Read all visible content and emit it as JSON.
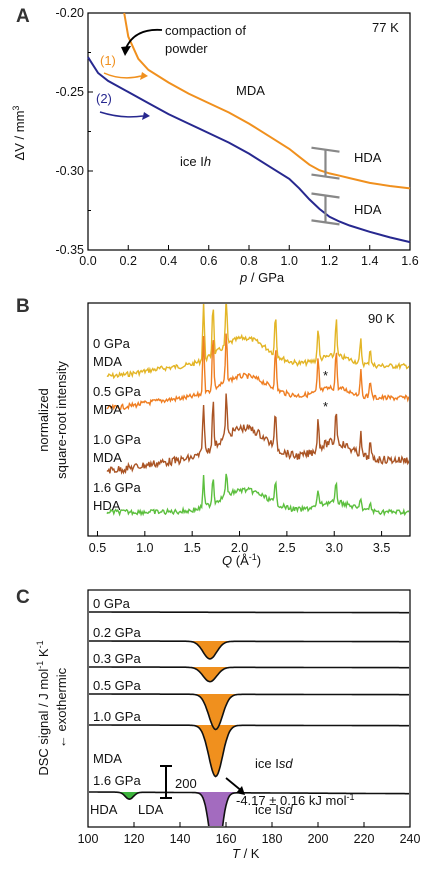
{
  "chart_data": [
    {
      "panel": "A",
      "type": "line",
      "xlabel_var": "p",
      "xlabel_unit": "/ GPa",
      "ylabel_main": "ΔV / mm",
      "ylabel_sup": "3",
      "xlim": [
        0.0,
        1.6
      ],
      "ylim": [
        -0.35,
        -0.2
      ],
      "xticks": [
        "0.0",
        "0.2",
        "0.4",
        "0.6",
        "0.8",
        "1.0",
        "1.2",
        "1.4",
        "1.6"
      ],
      "yticks": [
        "-0.20",
        "-0.25",
        "-0.30",
        "-0.35"
      ],
      "temperature": "77 K",
      "annotations": {
        "compaction": "compaction of",
        "compaction2": "powder",
        "label1": "(1)",
        "label2": "(2)",
        "mda": "MDA",
        "hda_top": "HDA",
        "hda_bottom": "HDA",
        "ice_prefix": "ice I",
        "ice_suffix": "h"
      },
      "series": [
        {
          "color": "#f0901e",
          "x": [
            0.18,
            0.2,
            0.25,
            0.3,
            0.4,
            0.5,
            0.6,
            0.7,
            0.8,
            0.9,
            1.0,
            1.05,
            1.1,
            1.15,
            1.2,
            1.25,
            1.3,
            1.4,
            1.5,
            1.6
          ],
          "y": [
            -0.2,
            -0.215,
            -0.229,
            -0.236,
            -0.244,
            -0.251,
            -0.257,
            -0.263,
            -0.27,
            -0.278,
            -0.286,
            -0.291,
            -0.296,
            -0.2995,
            -0.3015,
            -0.303,
            -0.3045,
            -0.3075,
            -0.3095,
            -0.311
          ]
        },
        {
          "color": "#27288f",
          "x": [
            0.0,
            0.05,
            0.1,
            0.2,
            0.3,
            0.4,
            0.5,
            0.6,
            0.7,
            0.8,
            0.9,
            1.0,
            1.05,
            1.1,
            1.15,
            1.2,
            1.25,
            1.3,
            1.4,
            1.5,
            1.6
          ],
          "y": [
            -0.228,
            -0.238,
            -0.243,
            -0.25,
            -0.257,
            -0.264,
            -0.27,
            -0.276,
            -0.282,
            -0.289,
            -0.297,
            -0.305,
            -0.311,
            -0.318,
            -0.324,
            -0.329,
            -0.332,
            -0.3345,
            -0.3385,
            -0.342,
            -0.345
          ]
        }
      ],
      "brackets": [
        {
          "x": 1.18,
          "y_top": -0.2865,
          "y_bottom": -0.3035
        },
        {
          "x": 1.18,
          "y_top": -0.3155,
          "y_bottom": -0.3325
        }
      ]
    },
    {
      "panel": "B",
      "type": "line",
      "xlabel_var": "Q",
      "xlabel_unit": "(Å",
      "xlabel_sup": "-1",
      "xlabel_close": ")",
      "ylabel_line1": "normalized",
      "ylabel_line2": "square-root intensity",
      "xlim": [
        0.4,
        3.8
      ],
      "xticks": [
        "0.5",
        "1.0",
        "1.5",
        "2.0",
        "2.5",
        "3.0",
        "3.5"
      ],
      "temperature": "90 K",
      "star": "*",
      "series": [
        {
          "label_p": "0 GPa",
          "label_phase": "MDA",
          "color": "#e3b526"
        },
        {
          "label_p": "0.5 GPa",
          "label_phase": "MDA",
          "color": "#ef7e22"
        },
        {
          "label_p": "1.0 GPa",
          "label_phase": "MDA",
          "color": "#aa5424"
        },
        {
          "label_p": "1.6 GPa",
          "label_phase": "HDA",
          "color": "#5cbf3e"
        }
      ]
    },
    {
      "panel": "C",
      "type": "line",
      "xlabel_var": "T",
      "xlabel_unit": "/ K",
      "ylabel_main": "DSC signal / J mol",
      "ylabel_sup1": "-1",
      "ylabel_k": " K",
      "ylabel_sup2": "-1",
      "ylabel_arrow": "← exothermic",
      "xlim": [
        100,
        240
      ],
      "xticks": [
        "100",
        "120",
        "140",
        "160",
        "180",
        "200",
        "220",
        "240"
      ],
      "scale_bar": "200",
      "enthalpy": "-4.17 ± 0.16 kJ mol",
      "enthalpy_sup": "-1",
      "traces": [
        {
          "label": "0 GPa",
          "peak_depth": 0.0
        },
        {
          "label": "0.2 GPa",
          "peak_depth": 0.55
        },
        {
          "label": "0.3 GPa",
          "peak_depth": 0.45
        },
        {
          "label": "0.5 GPa",
          "peak_depth": 1.1
        },
        {
          "label": "1.0 GPa",
          "peak_depth": 1.6
        },
        {
          "label": "1.6 GPa",
          "peak_depth": 2.3
        }
      ],
      "mda_label": "MDA",
      "ice_isd_prefix": "ice I",
      "ice_isd_suffix": "sd",
      "hda_label": "HDA",
      "lda_label": "LDA",
      "colors": {
        "orange": "#f0901e",
        "green": "#3db33d",
        "purple": "#a36bbf"
      }
    }
  ]
}
